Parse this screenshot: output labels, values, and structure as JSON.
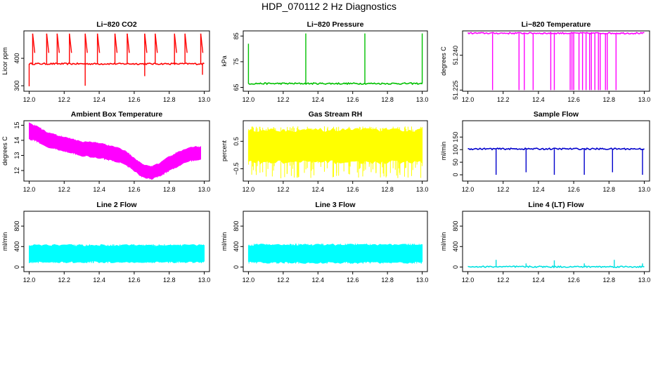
{
  "page": {
    "title": "HDP_070112  2 Hz Diagnostics"
  },
  "chart_data": [
    {
      "id": "co2",
      "type": "line",
      "title": "Li−820 CO2",
      "ylabel": "Licor ppm",
      "color": "#ff0000",
      "xlim": [
        11.97,
        13.03
      ],
      "ylim": [
        280,
        500
      ],
      "xticks": [
        12.0,
        12.2,
        12.4,
        12.6,
        12.8,
        13.0
      ],
      "xtick_labels": [
        "12.0",
        "12.2",
        "12.4",
        "12.6",
        "12.8",
        "13.0"
      ],
      "yticks": [
        300,
        400
      ],
      "ytick_labels": [
        "300",
        "400"
      ],
      "series": [
        {
          "name": "baseline",
          "x": [
            12.0,
            13.0
          ],
          "y": [
            380,
            380
          ]
        },
        {
          "name": "spikes_up",
          "x": [
            12.02,
            12.1,
            12.16,
            12.23,
            12.32,
            12.39,
            12.49,
            12.56,
            12.66,
            12.72,
            12.83,
            12.89,
            12.98
          ],
          "y": [
            490,
            490,
            490,
            490,
            490,
            490,
            490,
            490,
            490,
            490,
            490,
            490,
            490
          ]
        },
        {
          "name": "spikes_down",
          "x": [
            12.0,
            12.32,
            12.66,
            12.99
          ],
          "y": [
            298,
            300,
            335,
            340
          ]
        }
      ]
    },
    {
      "id": "pressure",
      "type": "line",
      "title": "Li−820 Pressure",
      "ylabel": "kPa",
      "color": "#00c000",
      "xlim": [
        11.97,
        13.03
      ],
      "ylim": [
        63.5,
        87
      ],
      "xticks": [
        12.0,
        12.2,
        12.4,
        12.6,
        12.8,
        13.0
      ],
      "xtick_labels": [
        "12.0",
        "12.2",
        "12.4",
        "12.6",
        "12.8",
        "13.0"
      ],
      "yticks": [
        65,
        75,
        85
      ],
      "ytick_labels": [
        "65",
        "75",
        "85"
      ],
      "series": [
        {
          "name": "baseline",
          "x": [
            12.0,
            13.0
          ],
          "y": [
            66.5,
            66.5
          ]
        },
        {
          "name": "spikes",
          "x": [
            12.0,
            12.33,
            12.67,
            13.0
          ],
          "y": [
            82,
            86,
            86,
            86
          ]
        }
      ]
    },
    {
      "id": "licor_temp",
      "type": "line",
      "title": "Li−820 Temperature",
      "ylabel": "degrees C",
      "color": "#ff00ff",
      "xlim": [
        11.97,
        13.03
      ],
      "ylim": [
        51.2245,
        51.2505
      ],
      "xticks": [
        12.0,
        12.2,
        12.4,
        12.6,
        12.8,
        13.0
      ],
      "xtick_labels": [
        "12.0",
        "12.2",
        "12.4",
        "12.6",
        "12.8",
        "13.0"
      ],
      "yticks": [
        51.225,
        51.24
      ],
      "ytick_labels": [
        "51.225",
        "51.240"
      ],
      "series": [
        {
          "name": "baseline",
          "x": [
            12.0,
            13.0
          ],
          "y": [
            51.2495,
            51.2495
          ]
        },
        {
          "name": "drops",
          "x": [
            12.14,
            12.29,
            12.32,
            12.37,
            12.47,
            12.49,
            12.58,
            12.59,
            12.6,
            12.63,
            12.65,
            12.67,
            12.69,
            12.7,
            12.72,
            12.74,
            12.75,
            12.78,
            12.79,
            12.84
          ],
          "y": [
            51.225,
            51.225,
            51.225,
            51.225,
            51.225,
            51.225,
            51.225,
            51.225,
            51.225,
            51.225,
            51.225,
            51.225,
            51.225,
            51.225,
            51.225,
            51.225,
            51.225,
            51.225,
            51.225,
            51.225
          ]
        }
      ]
    },
    {
      "id": "box_temp",
      "type": "area",
      "title": "Ambient Box Temperature",
      "ylabel": "degrees C",
      "color": "#ff00ff",
      "xlim": [
        11.97,
        13.03
      ],
      "ylim": [
        11.3,
        15.3
      ],
      "xticks": [
        12.0,
        12.2,
        12.4,
        12.6,
        12.8,
        13.0
      ],
      "xtick_labels": [
        "12.0",
        "12.2",
        "12.4",
        "12.6",
        "12.8",
        "13.0"
      ],
      "yticks": [
        12,
        13,
        14,
        15
      ],
      "ytick_labels": [
        "12",
        "13",
        "14",
        "15"
      ],
      "series": [
        {
          "name": "upper",
          "x": [
            12.0,
            12.05,
            12.1,
            12.2,
            12.3,
            12.4,
            12.5,
            12.55,
            12.6,
            12.65,
            12.7,
            12.75,
            12.8,
            12.85,
            12.9,
            12.95,
            12.98
          ],
          "y": [
            15.1,
            14.9,
            14.5,
            14.2,
            13.9,
            13.8,
            13.5,
            13.3,
            12.8,
            12.35,
            12.25,
            12.5,
            12.9,
            13.2,
            13.45,
            13.55,
            13.55
          ]
        },
        {
          "name": "lower",
          "x": [
            12.0,
            12.05,
            12.1,
            12.2,
            12.3,
            12.4,
            12.5,
            12.55,
            12.6,
            12.65,
            12.7,
            12.75,
            12.8,
            12.85,
            12.9,
            12.95,
            12.98
          ],
          "y": [
            14.1,
            13.9,
            13.6,
            13.3,
            13.0,
            12.85,
            12.6,
            12.4,
            12.0,
            11.55,
            11.45,
            11.65,
            12.0,
            12.3,
            12.6,
            12.7,
            12.7
          ]
        }
      ]
    },
    {
      "id": "rh",
      "type": "area",
      "title": "Gas Stream RH",
      "ylabel": "percent",
      "color": "#ffff00",
      "xlim": [
        11.97,
        13.03
      ],
      "ylim": [
        -0.95,
        1.25
      ],
      "xticks": [
        12.0,
        12.2,
        12.4,
        12.6,
        12.8,
        13.0
      ],
      "xtick_labels": [
        "12.0",
        "12.2",
        "12.4",
        "12.6",
        "12.8",
        "13.0"
      ],
      "yticks": [
        -0.5,
        0.5
      ],
      "ytick_labels": [
        "−0.5",
        "0.5"
      ],
      "series": [
        {
          "name": "upper",
          "x": [
            12.0,
            13.0
          ],
          "y": [
            0.9,
            0.9
          ]
        },
        {
          "name": "lower",
          "x": [
            12.0,
            13.0
          ],
          "y": [
            -0.25,
            -0.25
          ]
        },
        {
          "name": "max",
          "x": [
            12.0,
            13.0
          ],
          "y": [
            1.05,
            1.05
          ]
        },
        {
          "name": "min",
          "x": [
            12.0,
            13.0
          ],
          "y": [
            -0.85,
            -0.85
          ]
        }
      ]
    },
    {
      "id": "sample_flow",
      "type": "line",
      "title": "Sample Flow",
      "ylabel": "ml/min",
      "color": "#0000cc",
      "xlim": [
        11.97,
        13.03
      ],
      "ylim": [
        -25,
        215
      ],
      "xticks": [
        12.0,
        12.2,
        12.4,
        12.6,
        12.8,
        13.0
      ],
      "xtick_labels": [
        "12.0",
        "12.2",
        "12.4",
        "12.6",
        "12.8",
        "13.0"
      ],
      "yticks": [
        0,
        50,
        100,
        150
      ],
      "ytick_labels": [
        "0",
        "50",
        "100",
        "150"
      ],
      "series": [
        {
          "name": "baseline",
          "x": [
            12.0,
            13.0
          ],
          "y": [
            103,
            103
          ]
        },
        {
          "name": "drops",
          "x": [
            12.16,
            12.33,
            12.49,
            12.66,
            12.82,
            12.99
          ],
          "y": [
            0,
            10,
            0,
            0,
            10,
            0
          ]
        }
      ]
    },
    {
      "id": "line2",
      "type": "area",
      "title": "Line 2 Flow",
      "ylabel": "ml/min",
      "color": "#00ffff",
      "xlim": [
        11.97,
        13.03
      ],
      "ylim": [
        -90,
        1090
      ],
      "xticks": [
        12.0,
        12.2,
        12.4,
        12.6,
        12.8,
        13.0
      ],
      "xtick_labels": [
        "12.0",
        "12.2",
        "12.4",
        "12.6",
        "12.8",
        "13.0"
      ],
      "yticks": [
        0,
        400,
        800
      ],
      "ytick_labels": [
        "0",
        "400",
        "800"
      ],
      "series": [
        {
          "name": "upper",
          "x": [
            12.0,
            13.0
          ],
          "y": [
            420,
            420
          ]
        },
        {
          "name": "lower",
          "x": [
            12.0,
            13.0
          ],
          "y": [
            100,
            100
          ]
        }
      ]
    },
    {
      "id": "line3",
      "type": "area",
      "title": "Line 3 Flow",
      "ylabel": "ml/min",
      "color": "#00ffff",
      "xlim": [
        11.97,
        13.03
      ],
      "ylim": [
        -90,
        1090
      ],
      "xticks": [
        12.0,
        12.2,
        12.4,
        12.6,
        12.8,
        13.0
      ],
      "xtick_labels": [
        "12.0",
        "12.2",
        "12.4",
        "12.6",
        "12.8",
        "13.0"
      ],
      "yticks": [
        0,
        400,
        800
      ],
      "ytick_labels": [
        "0",
        "400",
        "800"
      ],
      "series": [
        {
          "name": "upper",
          "x": [
            12.0,
            13.0
          ],
          "y": [
            430,
            430
          ]
        },
        {
          "name": "lower",
          "x": [
            12.0,
            13.0
          ],
          "y": [
            90,
            90
          ]
        }
      ]
    },
    {
      "id": "line4",
      "type": "line",
      "title": "Line 4 (LT) Flow",
      "ylabel": "ml/min",
      "color": "#00e0e0",
      "xlim": [
        11.97,
        13.03
      ],
      "ylim": [
        -90,
        1090
      ],
      "xticks": [
        12.0,
        12.2,
        12.4,
        12.6,
        12.8,
        13.0
      ],
      "xtick_labels": [
        "12.0",
        "12.2",
        "12.4",
        "12.6",
        "12.8",
        "13.0"
      ],
      "yticks": [
        0,
        400,
        800
      ],
      "ytick_labels": [
        "0",
        "400",
        "800"
      ],
      "series": [
        {
          "name": "baseline",
          "x": [
            12.0,
            13.0
          ],
          "y": [
            5,
            5
          ]
        },
        {
          "name": "spikes",
          "x": [
            12.16,
            12.33,
            12.49,
            12.66,
            12.83,
            12.99
          ],
          "y": [
            140,
            70,
            130,
            70,
            140,
            70
          ]
        }
      ]
    }
  ]
}
